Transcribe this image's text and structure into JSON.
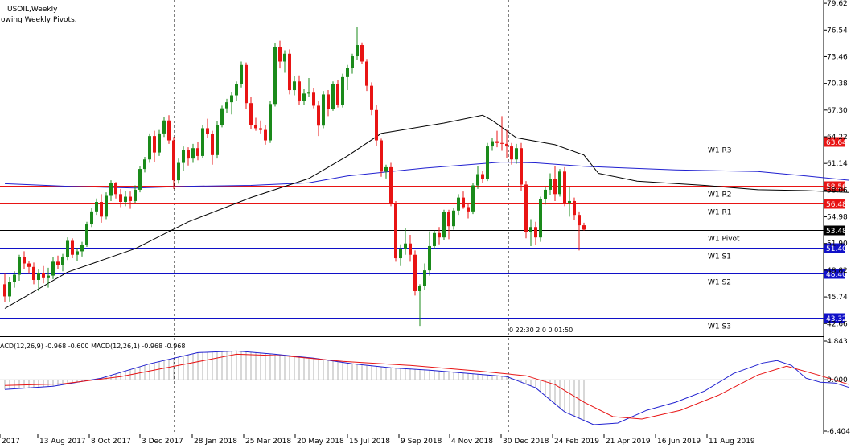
{
  "chart_data": {
    "type": "candlestick",
    "title": "USOIL,Weekly",
    "subtitle": "owing Weekly Pivots.",
    "colors": {
      "up": "#1a8a1a",
      "down": "#e81414",
      "pivot_res": "#e81414",
      "pivot_sup": "#1010c8",
      "pivot": "#000000",
      "ma_blue": "#2020d0",
      "ma_black": "#000000",
      "macd_main": "#2020d0",
      "macd_signal": "#e81414",
      "histogram": "#b0b0b0"
    },
    "y_ticks": [
      "79.62",
      "76.54",
      "73.46",
      "70.38",
      "67.30",
      "64.22",
      "61.14",
      "58.06",
      "54.98",
      "51.90",
      "48.82",
      "45.74",
      "42.66"
    ],
    "ylim": [
      41.2,
      80.0
    ],
    "x_labels": [
      "2017",
      "13 Aug 2017",
      "8 Oct 2017",
      "3 Dec 2017",
      "28 Jan 2018",
      "25 Mar 2018",
      "20 May 2018",
      "15 Jul 2018",
      "9 Sep 2018",
      "4 Nov 2018",
      "30 Dec 2018",
      "24 Feb 2019",
      "21 Apr 2019",
      "16 Jun 2019",
      "11 Aug 2019"
    ],
    "candles": [
      [
        47.2,
        48.4,
        45.1,
        45.8
      ],
      [
        45.8,
        48.0,
        45.2,
        47.5
      ],
      [
        47.5,
        48.7,
        46.8,
        48.3
      ],
      [
        48.3,
        50.6,
        47.6,
        50.3
      ],
      [
        50.3,
        51.0,
        48.9,
        49.6
      ],
      [
        49.6,
        49.9,
        48.4,
        49.2
      ],
      [
        49.2,
        49.7,
        47.2,
        47.7
      ],
      [
        47.7,
        49.0,
        46.4,
        48.5
      ],
      [
        48.5,
        49.3,
        47.3,
        47.9
      ],
      [
        47.9,
        49.1,
        46.8,
        48.2
      ],
      [
        48.2,
        50.3,
        47.8,
        49.8
      ],
      [
        49.8,
        50.5,
        48.9,
        49.4
      ],
      [
        49.4,
        50.7,
        48.7,
        50.3
      ],
      [
        50.3,
        52.6,
        50.0,
        52.2
      ],
      [
        52.2,
        52.5,
        50.2,
        50.6
      ],
      [
        50.6,
        51.4,
        49.9,
        51.0
      ],
      [
        51.0,
        52.1,
        50.4,
        51.7
      ],
      [
        51.7,
        54.4,
        51.5,
        54.1
      ],
      [
        54.1,
        56.0,
        53.8,
        55.6
      ],
      [
        55.6,
        57.1,
        55.2,
        56.7
      ],
      [
        56.7,
        57.6,
        54.3,
        55.0
      ],
      [
        55.0,
        57.8,
        54.7,
        57.4
      ],
      [
        57.4,
        59.2,
        56.8,
        58.9
      ],
      [
        58.9,
        59.0,
        57.1,
        57.6
      ],
      [
        57.6,
        58.2,
        56.1,
        56.7
      ],
      [
        56.7,
        58.0,
        56.2,
        57.3
      ],
      [
        57.3,
        57.9,
        55.9,
        56.8
      ],
      [
        56.8,
        58.6,
        56.5,
        58.1
      ],
      [
        58.1,
        60.8,
        57.8,
        60.5
      ],
      [
        60.5,
        61.9,
        60.1,
        61.6
      ],
      [
        61.6,
        64.6,
        61.2,
        64.3
      ],
      [
        64.3,
        64.9,
        61.3,
        62.4
      ],
      [
        62.4,
        65.0,
        62.0,
        64.6
      ],
      [
        64.6,
        66.5,
        64.2,
        66.1
      ],
      [
        66.1,
        66.7,
        63.4,
        63.8
      ],
      [
        63.8,
        64.2,
        58.2,
        59.2
      ],
      [
        59.2,
        61.7,
        58.8,
        61.2
      ],
      [
        61.2,
        63.1,
        60.3,
        62.7
      ],
      [
        62.7,
        63.0,
        60.9,
        61.7
      ],
      [
        61.7,
        63.4,
        61.2,
        62.9
      ],
      [
        62.9,
        63.6,
        61.5,
        62.0
      ],
      [
        62.0,
        65.6,
        61.8,
        65.2
      ],
      [
        65.2,
        66.3,
        64.1,
        64.5
      ],
      [
        64.5,
        64.9,
        61.0,
        62.1
      ],
      [
        62.1,
        66.0,
        61.7,
        65.6
      ],
      [
        65.6,
        67.8,
        65.3,
        67.5
      ],
      [
        67.5,
        68.6,
        67.0,
        68.2
      ],
      [
        68.2,
        69.4,
        66.8,
        69.0
      ],
      [
        69.0,
        70.6,
        68.4,
        70.3
      ],
      [
        70.3,
        72.9,
        69.9,
        72.5
      ],
      [
        72.5,
        72.8,
        67.4,
        68.1
      ],
      [
        68.1,
        68.8,
        65.1,
        65.6
      ],
      [
        65.6,
        66.4,
        64.9,
        65.2
      ],
      [
        65.2,
        66.1,
        64.6,
        65.0
      ],
      [
        65.0,
        65.6,
        63.3,
        63.8
      ],
      [
        63.8,
        68.3,
        63.5,
        68.0
      ],
      [
        68.0,
        75.0,
        67.7,
        74.6
      ],
      [
        74.6,
        75.3,
        72.1,
        72.9
      ],
      [
        72.9,
        74.2,
        71.6,
        73.8
      ],
      [
        73.8,
        74.3,
        69.1,
        69.6
      ],
      [
        69.6,
        71.2,
        69.0,
        70.6
      ],
      [
        70.6,
        71.3,
        67.9,
        68.4
      ],
      [
        68.4,
        69.7,
        67.9,
        69.2
      ],
      [
        69.2,
        71.0,
        68.8,
        69.3
      ],
      [
        69.3,
        69.8,
        67.5,
        67.8
      ],
      [
        67.8,
        68.4,
        64.3,
        65.5
      ],
      [
        65.5,
        69.5,
        65.2,
        69.1
      ],
      [
        69.1,
        69.6,
        66.6,
        67.4
      ],
      [
        67.4,
        70.6,
        67.2,
        70.3
      ],
      [
        70.3,
        70.8,
        67.6,
        67.9
      ],
      [
        67.9,
        71.5,
        67.6,
        71.1
      ],
      [
        71.1,
        72.5,
        69.6,
        72.2
      ],
      [
        72.2,
        73.8,
        71.5,
        73.5
      ],
      [
        73.5,
        76.9,
        73.1,
        74.8
      ],
      [
        74.8,
        75.1,
        72.6,
        72.9
      ],
      [
        72.9,
        73.2,
        69.5,
        70.1
      ],
      [
        70.1,
        70.5,
        66.7,
        67.3
      ],
      [
        67.3,
        67.9,
        63.2,
        63.8
      ],
      [
        63.8,
        64.0,
        59.6,
        60.2
      ],
      [
        60.2,
        61.0,
        59.4,
        60.7
      ],
      [
        60.7,
        61.2,
        56.2,
        56.5
      ],
      [
        56.5,
        56.8,
        49.8,
        50.2
      ],
      [
        50.2,
        51.8,
        49.3,
        51.3
      ],
      [
        51.3,
        53.7,
        50.6,
        51.9
      ],
      [
        51.9,
        52.9,
        49.8,
        50.6
      ],
      [
        50.6,
        51.1,
        45.9,
        46.4
      ],
      [
        46.4,
        47.2,
        42.4,
        47.0
      ],
      [
        47.0,
        49.6,
        46.5,
        48.8
      ],
      [
        48.8,
        53.3,
        48.2,
        51.6
      ],
      [
        51.6,
        53.4,
        51.3,
        53.1
      ],
      [
        53.1,
        53.8,
        51.8,
        52.6
      ],
      [
        52.6,
        55.8,
        52.3,
        55.5
      ],
      [
        55.5,
        55.8,
        52.4,
        53.9
      ],
      [
        53.9,
        56.0,
        53.5,
        55.7
      ],
      [
        55.7,
        57.6,
        55.2,
        57.2
      ],
      [
        57.2,
        57.9,
        55.9,
        56.1
      ],
      [
        56.1,
        56.6,
        54.8,
        55.6
      ],
      [
        55.6,
        58.9,
        55.3,
        58.6
      ],
      [
        58.6,
        60.8,
        58.2,
        59.9
      ],
      [
        59.9,
        60.3,
        58.9,
        59.3
      ],
      [
        59.3,
        63.5,
        59.1,
        63.1
      ],
      [
        63.1,
        64.1,
        62.6,
        63.7
      ],
      [
        63.7,
        64.9,
        63.0,
        63.5
      ],
      [
        63.5,
        66.6,
        62.6,
        63.4
      ],
      [
        63.4,
        65.0,
        61.8,
        63.1
      ],
      [
        63.1,
        63.5,
        61.0,
        61.6
      ],
      [
        61.6,
        63.4,
        61.1,
        62.9
      ],
      [
        62.9,
        63.5,
        58.0,
        58.7
      ],
      [
        58.7,
        59.1,
        52.5,
        53.2
      ],
      [
        53.2,
        54.7,
        51.6,
        53.8
      ],
      [
        53.8,
        54.4,
        51.7,
        52.6
      ],
      [
        52.6,
        57.3,
        52.1,
        57.0
      ],
      [
        57.0,
        58.4,
        56.4,
        58.1
      ],
      [
        58.1,
        60.0,
        57.5,
        59.3
      ],
      [
        59.3,
        60.8,
        56.8,
        57.6
      ],
      [
        57.6,
        60.5,
        57.3,
        60.2
      ],
      [
        60.2,
        60.7,
        56.2,
        56.6
      ],
      [
        56.6,
        58.4,
        55.0,
        56.8
      ],
      [
        56.8,
        57.2,
        54.6,
        55.2
      ],
      [
        55.2,
        55.6,
        51.1,
        54.0
      ],
      [
        54.0,
        54.3,
        53.4,
        53.5
      ]
    ],
    "ma_black": [
      [
        0,
        44.4
      ],
      [
        13,
        48.6
      ],
      [
        27,
        51.3
      ],
      [
        38,
        54.4
      ],
      [
        51,
        57.2
      ],
      [
        63,
        59.4
      ],
      [
        71,
        62.0
      ],
      [
        78,
        64.6
      ],
      [
        91,
        65.8
      ],
      [
        99,
        66.7
      ],
      [
        101,
        66.1
      ],
      [
        106,
        64.1
      ],
      [
        114,
        63.3
      ],
      [
        120,
        62.1
      ],
      [
        123,
        60.0
      ],
      [
        131,
        59.1
      ],
      [
        145,
        58.6
      ],
      [
        156,
        58.1
      ],
      [
        166,
        58.0
      ],
      [
        175,
        57.8
      ]
    ],
    "ma_blue": [
      [
        0,
        58.8
      ],
      [
        13,
        58.5
      ],
      [
        27,
        58.3
      ],
      [
        38,
        58.5
      ],
      [
        51,
        58.6
      ],
      [
        63,
        58.9
      ],
      [
        71,
        59.7
      ],
      [
        87,
        60.6
      ],
      [
        103,
        61.3
      ],
      [
        110,
        61.2
      ],
      [
        120,
        60.8
      ],
      [
        139,
        60.4
      ],
      [
        156,
        60.2
      ],
      [
        166,
        59.7
      ],
      [
        175,
        59.2
      ]
    ],
    "pivots": [
      {
        "label": "W1 R3",
        "value": "63.64",
        "y": 63.64
      },
      {
        "label": "W1 R2",
        "value": "58.56",
        "y": 58.56
      },
      {
        "label": "W1 R1",
        "value": "56.48",
        "y": 56.48
      },
      {
        "label": "W1 Pivot",
        "value": "53.48",
        "y": 53.48
      },
      {
        "label": "W1 S1",
        "value": "51.40",
        "y": 51.4
      },
      {
        "label": "W1 S2",
        "value": "48.40",
        "y": 48.4
      },
      {
        "label": "W1 S3",
        "value": "43.32",
        "y": 43.32
      }
    ],
    "timer_text": "0 22:30 2 0 0 01:50",
    "macd": {
      "label": "ACD(12,26,9) -0.968 -0.600 MACD(12,26,1) -0.968 -0.968",
      "y_ticks": [
        "4.843",
        "0.000",
        "-6.404"
      ],
      "ylim": [
        -6.404,
        4.843
      ],
      "main": [
        [
          0,
          -1.2
        ],
        [
          10,
          -0.8
        ],
        [
          20,
          0.2
        ],
        [
          30,
          2.0
        ],
        [
          40,
          3.4
        ],
        [
          48,
          3.6
        ],
        [
          56,
          3.2
        ],
        [
          64,
          2.7
        ],
        [
          72,
          2.0
        ],
        [
          80,
          1.5
        ],
        [
          88,
          1.2
        ],
        [
          96,
          0.8
        ],
        [
          104,
          0.4
        ],
        [
          110,
          -1.0
        ],
        [
          116,
          -4.0
        ],
        [
          122,
          -5.6
        ],
        [
          127,
          -5.4
        ],
        [
          133,
          -3.8
        ],
        [
          139,
          -2.8
        ],
        [
          145,
          -1.4
        ],
        [
          151,
          0.8
        ],
        [
          157,
          2.1
        ],
        [
          160,
          2.4
        ],
        [
          163,
          1.8
        ],
        [
          166,
          0.2
        ],
        [
          169,
          -0.3
        ],
        [
          172,
          -0.4
        ],
        [
          175,
          -0.96
        ]
      ],
      "signal": [
        [
          0,
          -0.7
        ],
        [
          12,
          -0.5
        ],
        [
          24,
          0.4
        ],
        [
          36,
          1.8
        ],
        [
          48,
          3.2
        ],
        [
          58,
          3.0
        ],
        [
          70,
          2.3
        ],
        [
          84,
          1.8
        ],
        [
          98,
          1.1
        ],
        [
          108,
          0.5
        ],
        [
          114,
          -0.6
        ],
        [
          120,
          -2.8
        ],
        [
          126,
          -4.6
        ],
        [
          132,
          -4.9
        ],
        [
          140,
          -3.8
        ],
        [
          148,
          -1.9
        ],
        [
          156,
          0.6
        ],
        [
          162,
          1.7
        ],
        [
          168,
          0.7
        ],
        [
          175,
          -0.6
        ]
      ]
    }
  }
}
